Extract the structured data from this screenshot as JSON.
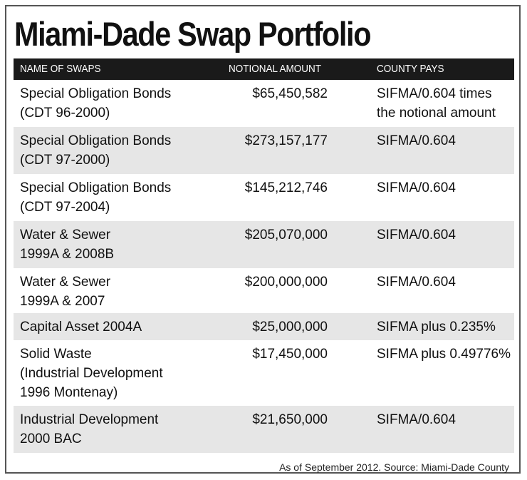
{
  "title": "Miami-Dade Swap Portfolio",
  "headers": {
    "name": "NAME OF SWAPS",
    "amount": "NOTIONAL AMOUNT",
    "pays": "COUNTY PAYS"
  },
  "rows": [
    {
      "name": "Special Obligation Bonds\n(CDT 96-2000)",
      "amount": "$65,450,582",
      "pays": "SIFMA/0.604 times\nthe notional amount"
    },
    {
      "name": "Special Obligation Bonds\n(CDT 97-2000)",
      "amount": "$273,157,177",
      "pays": "SIFMA/0.604"
    },
    {
      "name": "Special Obligation Bonds\n(CDT 97-2004)",
      "amount": "$145,212,746",
      "pays": "SIFMA/0.604"
    },
    {
      "name": "Water & Sewer\n1999A & 2008B",
      "amount": "$205,070,000",
      "pays": "SIFMA/0.604"
    },
    {
      "name": "Water & Sewer\n1999A & 2007",
      "amount": "$200,000,000",
      "pays": "SIFMA/0.604"
    },
    {
      "name": "Capital Asset 2004A",
      "amount": "$25,000,000",
      "pays": "SIFMA plus 0.235%"
    },
    {
      "name": "Solid Waste\n(Industrial Development\n1996 Montenay)",
      "amount": "$17,450,000",
      "pays": "SIFMA plus 0.49776%"
    },
    {
      "name": "Industrial Development\n2000 BAC",
      "amount": "$21,650,000",
      "pays": "SIFMA/0.604"
    }
  ],
  "footer": "As of September 2012. Source: Miami-Dade County"
}
